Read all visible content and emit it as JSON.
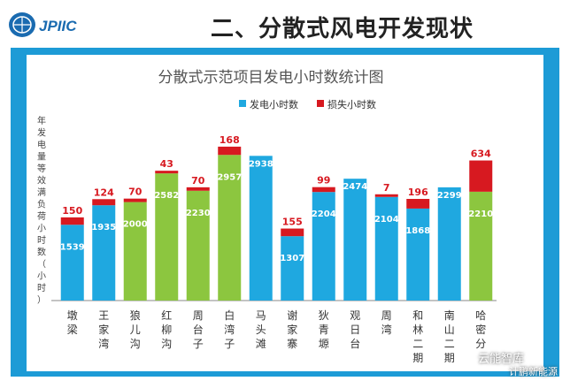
{
  "header": {
    "logo_text": "JPIIC",
    "title": "二、分散式风电开发现状"
  },
  "chart_data": {
    "type": "bar",
    "title": "分散式示范项目发电小时数统计图",
    "ylabel": "年发电量等效满负荷小时数（小时）",
    "categories": [
      "墩梁",
      "王家湾",
      "狼儿沟",
      "红柳沟",
      "周台子",
      "白湾子",
      "马头滩",
      "谢家寨",
      "狄青塬",
      "观日台",
      "周湾",
      "和林二期",
      "南山二期",
      "哈密分"
    ],
    "series": [
      {
        "name": "发电小时数",
        "values": [
          1539,
          1935,
          2000,
          2582,
          2230,
          2957,
          2938,
          1307,
          2204,
          2474,
          2104,
          1868,
          2299,
          2210
        ],
        "color_blue": "#1fa8e0",
        "color_green": "#8cc63f"
      },
      {
        "name": "损失小时数",
        "values": [
          150,
          124,
          70,
          43,
          70,
          168,
          null,
          155,
          99,
          null,
          7,
          196,
          null,
          634
        ],
        "color": "#d71920"
      }
    ],
    "bar_colors": [
      "blue",
      "blue",
      "green",
      "green",
      "green",
      "green",
      "blue",
      "blue",
      "blue",
      "blue",
      "blue",
      "blue",
      "blue",
      "green"
    ],
    "ylim": [
      0,
      3500
    ],
    "legend_position": "top-right",
    "grid": false
  },
  "watermark": {
    "line1": "云能智库",
    "line2": "计鹏新能源"
  }
}
